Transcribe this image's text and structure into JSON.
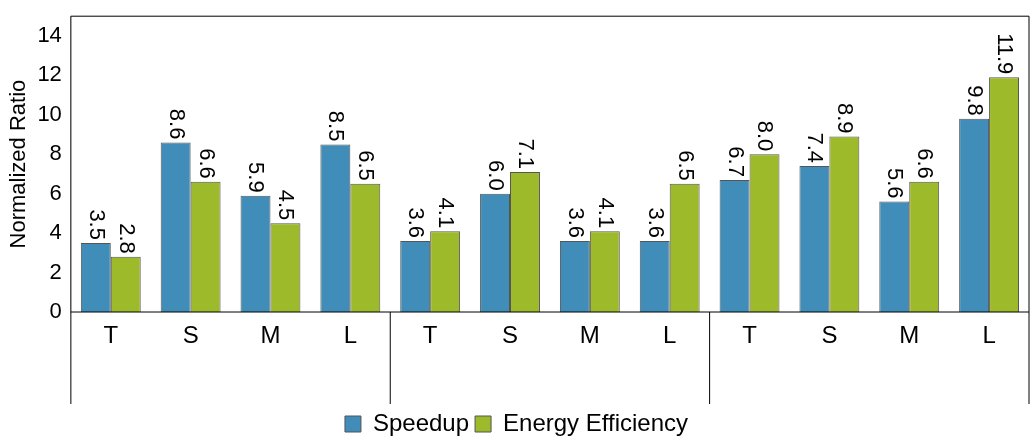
{
  "chart_data": {
    "type": "bar",
    "ylabel": "Normalized Ratio",
    "categories": [
      "T",
      "S",
      "M",
      "L",
      "T",
      "S",
      "M",
      "L",
      "T",
      "S",
      "M",
      "L"
    ],
    "series": [
      {
        "name": "Speedup",
        "color": "#3f8db8",
        "values": [
          3.5,
          8.6,
          5.9,
          8.5,
          3.6,
          6.0,
          3.6,
          3.6,
          6.7,
          7.4,
          5.6,
          9.8
        ],
        "value_labels": [
          "3.5",
          "8.6",
          "5.9",
          "8.5",
          "3.6",
          "6.0",
          "3.6",
          "3.6",
          "6.7",
          "7.4",
          "5.6",
          "9.8"
        ]
      },
      {
        "name": "Energy Efficiency",
        "color": "#9cba2a",
        "values": [
          2.8,
          6.6,
          4.5,
          6.5,
          4.1,
          7.1,
          4.1,
          6.5,
          8.0,
          8.9,
          6.6,
          11.9
        ],
        "value_labels": [
          "2.8",
          "6.6",
          "4.5",
          "6.5",
          "4.1",
          "7.1",
          "4.1",
          "6.5",
          "8.0",
          "8.9",
          "6.6",
          "11.9"
        ]
      }
    ],
    "ylim": [
      0,
      15
    ],
    "yticks": [
      0,
      2,
      4,
      6,
      8,
      10,
      12,
      14
    ],
    "grid": false,
    "legend": "bottom"
  }
}
